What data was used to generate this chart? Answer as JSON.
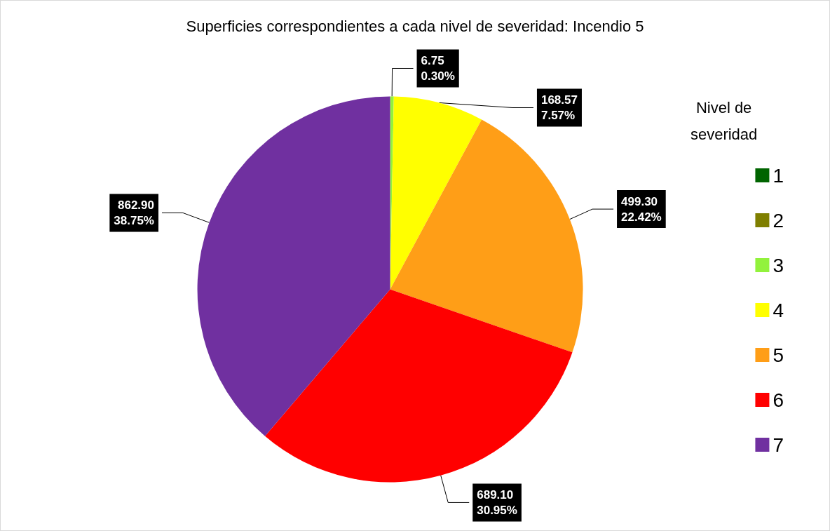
{
  "chart_data": {
    "type": "pie",
    "title": "Superficies correspondientes a cada nivel de severidad: Incendio 5",
    "legend_title": "Nivel de severidad",
    "categories": [
      "1",
      "2",
      "3",
      "4",
      "5",
      "6",
      "7"
    ],
    "values": [
      0,
      0,
      6.75,
      168.57,
      499.3,
      689.1,
      862.9
    ],
    "colors": [
      "#006400",
      "#7f7f00",
      "#92f23c",
      "#ffff00",
      "#ff9e17",
      "#ff0000",
      "#7030a0"
    ],
    "value_labels": [
      null,
      null,
      "6.75\n0.30%",
      "168.57\n7.57%",
      "499.30\n22.42%",
      "689.10\n30.95%",
      "862.90\n38.75%"
    ],
    "legend": "right"
  }
}
